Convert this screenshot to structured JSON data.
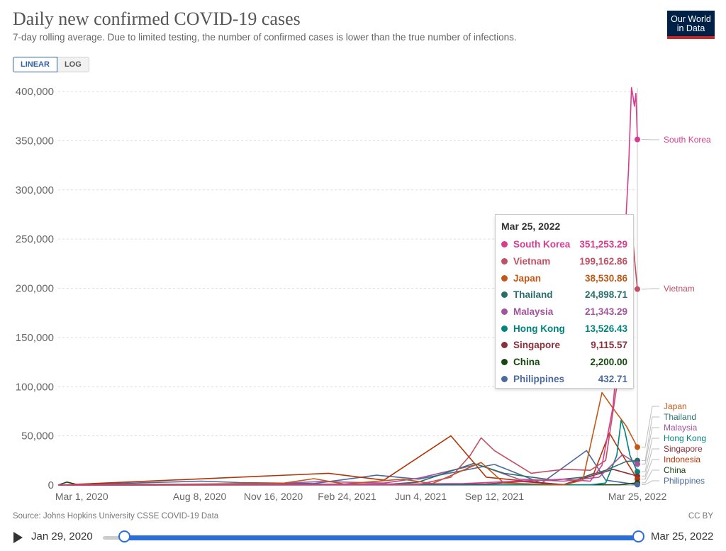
{
  "header": {
    "title": "Daily new confirmed COVID-19 cases",
    "subtitle": "7-day rolling average. Due to limited testing, the number of confirmed cases is lower than the true number of infections.",
    "logo_line1": "Our World",
    "logo_line2": "in Data"
  },
  "toggle": {
    "linear_label": "LINEAR",
    "log_label": "LOG",
    "active": "LINEAR"
  },
  "chart_data": {
    "type": "line",
    "title": "Daily new confirmed COVID-19 cases",
    "subtitle": "7-day rolling average. Due to limited testing, the number of confirmed cases is lower than the true number of infections.",
    "xlabel": "",
    "ylabel": "",
    "ylim": [
      0,
      400000
    ],
    "y_ticks": [
      0,
      50000,
      100000,
      150000,
      200000,
      250000,
      300000,
      350000,
      400000
    ],
    "y_tick_labels": [
      "0",
      "50,000",
      "100,000",
      "150,000",
      "200,000",
      "250,000",
      "300,000",
      "350,000",
      "400,000"
    ],
    "x_range": [
      "2020-01-29",
      "2022-03-25"
    ],
    "x_ticks": [
      "2020-03-01",
      "2020-08-08",
      "2020-11-16",
      "2021-02-24",
      "2021-06-04",
      "2021-09-12",
      "2022-03-25"
    ],
    "x_tick_labels": [
      "Mar 1, 2020",
      "Aug 8, 2020",
      "Nov 16, 2020",
      "Feb 24, 2021",
      "Jun 4, 2021",
      "Sep 12, 2021",
      "Mar 25, 2022"
    ],
    "grid": "horizontal",
    "series": [
      {
        "name": "South Korea",
        "color": "#d73c90",
        "x": [
          "2020-01-29",
          "2020-12-01",
          "2021-08-01",
          "2021-12-15",
          "2022-01-20",
          "2022-02-05",
          "2022-02-20",
          "2022-03-01",
          "2022-03-08",
          "2022-03-13",
          "2022-03-17",
          "2022-03-19",
          "2022-03-21",
          "2022-03-23",
          "2022-03-25"
        ],
        "values": [
          0,
          500,
          1500,
          6000,
          4000,
          20000,
          80000,
          160000,
          250000,
          320000,
          404000,
          395000,
          385000,
          398000,
          351253.29
        ]
      },
      {
        "name": "Vietnam",
        "color": "#c15065",
        "x": [
          "2020-01-29",
          "2021-06-01",
          "2021-07-15",
          "2021-08-10",
          "2021-08-25",
          "2021-09-12",
          "2021-11-01",
          "2021-12-15",
          "2022-01-20",
          "2022-02-10",
          "2022-02-25",
          "2022-03-05",
          "2022-03-12",
          "2022-03-18",
          "2022-03-25"
        ],
        "values": [
          0,
          500,
          8000,
          30000,
          48000,
          35000,
          12000,
          16000,
          15000,
          25000,
          100000,
          200000,
          260000,
          255000,
          199162.86
        ]
      },
      {
        "name": "Japan",
        "color": "#c05917",
        "x": [
          "2020-01-29",
          "2020-08-10",
          "2020-12-01",
          "2021-01-10",
          "2021-02-20",
          "2021-05-10",
          "2021-06-20",
          "2021-08-25",
          "2021-09-25",
          "2021-12-15",
          "2022-01-10",
          "2022-02-05",
          "2022-02-20",
          "2022-03-10",
          "2022-03-25"
        ],
        "values": [
          0,
          1000,
          2000,
          6500,
          1000,
          6000,
          1500,
          23000,
          2000,
          200,
          5000,
          94000,
          78000,
          60000,
          38530.86
        ]
      },
      {
        "name": "Thailand",
        "color": "#286f6c",
        "x": [
          "2020-01-29",
          "2021-04-15",
          "2021-06-01",
          "2021-08-15",
          "2021-09-25",
          "2021-12-01",
          "2022-01-10",
          "2022-02-10",
          "2022-03-10",
          "2022-03-25"
        ],
        "values": [
          0,
          500,
          3000,
          22000,
          12000,
          5000,
          8000,
          15000,
          24000,
          24898.71
        ]
      },
      {
        "name": "Malaysia",
        "color": "#a2559c",
        "x": [
          "2020-01-29",
          "2020-11-01",
          "2021-01-20",
          "2021-04-15",
          "2021-06-01",
          "2021-08-20",
          "2021-10-15",
          "2021-12-15",
          "2022-02-01",
          "2022-03-05",
          "2022-03-25"
        ],
        "values": [
          0,
          1000,
          3500,
          2000,
          7000,
          21000,
          6000,
          4000,
          8000,
          31000,
          21343.29
        ]
      },
      {
        "name": "Hong Kong",
        "color": "#00847e",
        "x": [
          "2020-01-29",
          "2022-01-20",
          "2022-02-10",
          "2022-02-25",
          "2022-03-03",
          "2022-03-08",
          "2022-03-15",
          "2022-03-25"
        ],
        "values": [
          0,
          200,
          2000,
          30000,
          66000,
          55000,
          30000,
          13526.43
        ]
      },
      {
        "name": "Singapore",
        "color": "#883039",
        "x": [
          "2020-01-29",
          "2020-05-01",
          "2021-09-01",
          "2021-10-20",
          "2021-12-15",
          "2022-02-20",
          "2022-03-25"
        ],
        "values": [
          0,
          800,
          1000,
          3500,
          500,
          16000,
          9115.57
        ]
      },
      {
        "name": "Indonesia",
        "color": "#b13507",
        "x": [
          "2020-01-29",
          "2021-01-30",
          "2021-04-15",
          "2021-07-15",
          "2021-09-01",
          "2021-12-15",
          "2022-01-25",
          "2022-02-15",
          "2022-03-01",
          "2022-03-25"
        ],
        "values": [
          0,
          12000,
          5000,
          50000,
          8000,
          200,
          12000,
          53000,
          35000,
          6000
        ]
      },
      {
        "name": "China",
        "color": "#18470f",
        "x": [
          "2020-01-29",
          "2020-02-10",
          "2020-02-25",
          "2020-04-01",
          "2022-03-01",
          "2022-03-25"
        ],
        "values": [
          0,
          3000,
          300,
          50,
          300,
          2200.0
        ]
      },
      {
        "name": "Philippines",
        "color": "#4c6a9c",
        "x": [
          "2020-01-29",
          "2020-08-10",
          "2020-10-01",
          "2021-01-10",
          "2021-04-05",
          "2021-06-01",
          "2021-09-12",
          "2021-11-15",
          "2022-01-15",
          "2022-02-10",
          "2022-03-25"
        ],
        "values": [
          0,
          4000,
          2500,
          1500,
          10000,
          6000,
          21000,
          2000,
          35000,
          5000,
          432.71
        ]
      }
    ],
    "end_labels": [
      "South Korea",
      "Vietnam",
      "Japan",
      "Thailand",
      "Malaysia",
      "Hong Kong",
      "Singapore",
      "Indonesia",
      "China",
      "Philippines"
    ],
    "end_label_colors": [
      "#d73c90",
      "#c15065",
      "#c05917",
      "#286f6c",
      "#a2559c",
      "#00847e",
      "#883039",
      "#b13507",
      "#18470f",
      "#4c6a9c"
    ]
  },
  "tooltip": {
    "date": "Mar 25, 2022",
    "rows": [
      {
        "name": "South Korea",
        "value": "351,253.29",
        "color": "#d73c90"
      },
      {
        "name": "Vietnam",
        "value": "199,162.86",
        "color": "#c15065"
      },
      {
        "name": "Japan",
        "value": "38,530.86",
        "color": "#c05917"
      },
      {
        "name": "Thailand",
        "value": "24,898.71",
        "color": "#286f6c"
      },
      {
        "name": "Malaysia",
        "value": "21,343.29",
        "color": "#a2559c"
      },
      {
        "name": "Hong Kong",
        "value": "13,526.43",
        "color": "#00847e"
      },
      {
        "name": "Singapore",
        "value": "9,115.57",
        "color": "#883039"
      },
      {
        "name": "China",
        "value": "2,200.00",
        "color": "#18470f"
      },
      {
        "name": "Philippines",
        "value": "432.71",
        "color": "#4c6a9c"
      }
    ]
  },
  "footer": {
    "source": "Source: Johns Hopkins University CSSE COVID-19 Data",
    "license": "CC BY"
  },
  "timeline": {
    "start": "Jan 29, 2020",
    "end": "Mar 25, 2022"
  }
}
